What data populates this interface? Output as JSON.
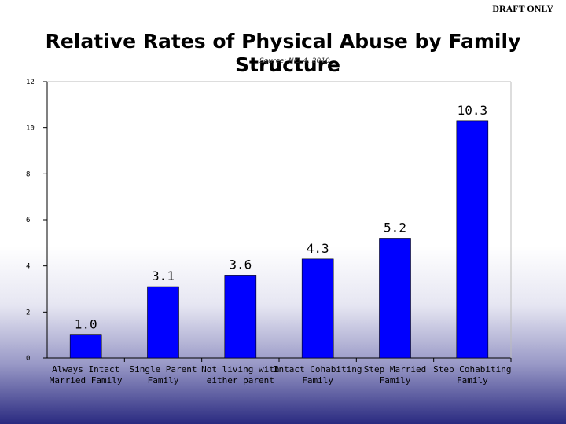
{
  "watermark": "DRAFT ONLY",
  "chart_data": {
    "type": "bar",
    "title": "Relative Rates of Physical Abuse by Family Structure",
    "title_lines": [
      "Relative Rates of Physical Abuse by Family",
      "Structure"
    ],
    "subtitle": "Source: NIS-4, 2010",
    "categories": [
      [
        "Always Intact",
        "Married Family"
      ],
      [
        "Single Parent",
        "Family"
      ],
      [
        "Not living with",
        "either parent"
      ],
      [
        "Intact Cohabiting",
        "Family"
      ],
      [
        "Step Married",
        "Family"
      ],
      [
        "Step Cohabiting",
        "Family"
      ]
    ],
    "values": [
      1.0,
      3.1,
      3.6,
      4.3,
      5.2,
      10.3
    ],
    "value_labels": [
      "1.0",
      "3.1",
      "3.6",
      "4.3",
      "5.2",
      "10.3"
    ],
    "ylim": [
      0,
      12
    ],
    "yticks": [
      0,
      2,
      4,
      6,
      8,
      10,
      12
    ],
    "xlabel": "",
    "ylabel": "",
    "bar_color": "#0000ff",
    "grid": false,
    "legend": "none"
  }
}
